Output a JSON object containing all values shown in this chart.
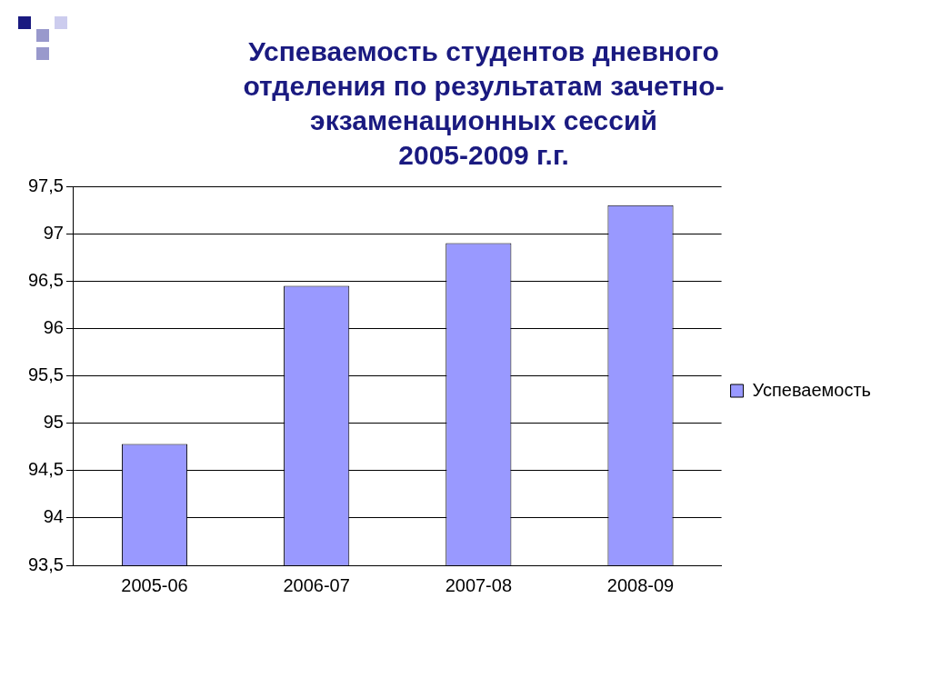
{
  "chart_data": {
    "type": "bar",
    "title": "Успеваемость студентов дневного\nотделения по результатам зачетно-\nэкзаменационных сессий\n2005-2009 г.г.",
    "categories": [
      "2005-06",
      "2006-07",
      "2007-08",
      "2008-09"
    ],
    "series": [
      {
        "name": "Успеваемость",
        "color": "#9999ff",
        "values": [
          94.78,
          96.45,
          96.9,
          97.3
        ]
      }
    ],
    "ylim": [
      93.5,
      97.5
    ],
    "yticks": [
      {
        "value": 93.5,
        "label": "93,5"
      },
      {
        "value": 94,
        "label": "94"
      },
      {
        "value": 94.5,
        "label": "94,5"
      },
      {
        "value": 95,
        "label": "95"
      },
      {
        "value": 95.5,
        "label": "95,5"
      },
      {
        "value": 96,
        "label": "96"
      },
      {
        "value": 96.5,
        "label": "96,5"
      },
      {
        "value": 97,
        "label": "97"
      },
      {
        "value": 97.5,
        "label": "97,5"
      }
    ],
    "grid": "y",
    "legend": "right"
  }
}
